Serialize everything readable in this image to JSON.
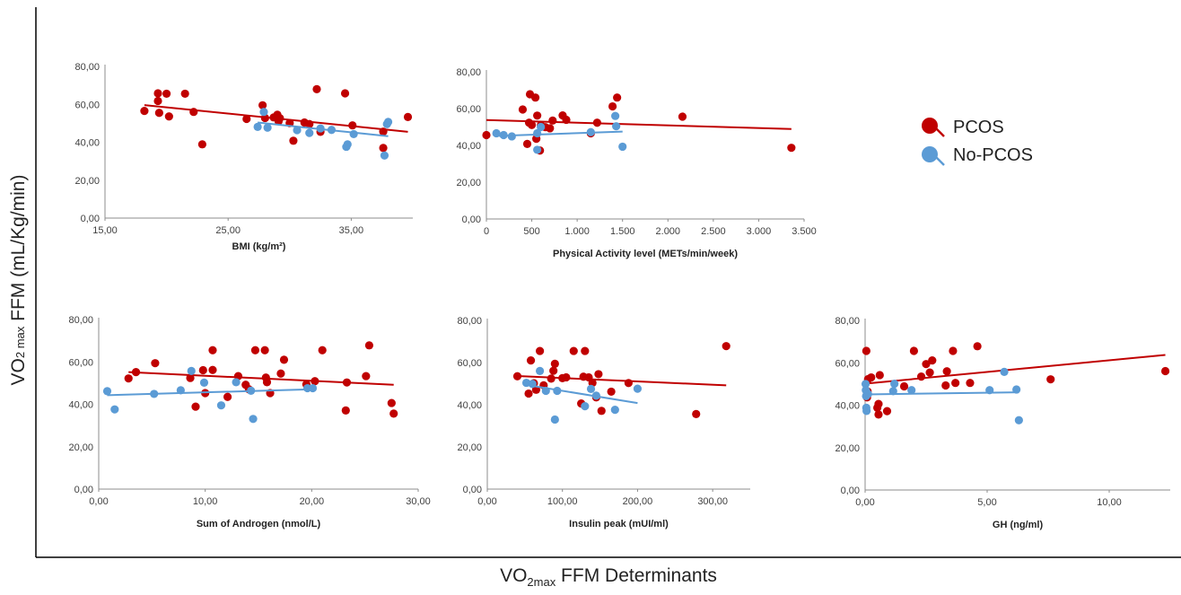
{
  "figure": {
    "y_axis_label": {
      "main": "VO",
      "sub_mid": "2 max",
      "rest": " FFM (mL/Kg/min)"
    },
    "x_axis_label": {
      "main": "VO",
      "sub_mid": "2max",
      "rest": " FFM Determinants"
    }
  },
  "legend": {
    "items": [
      {
        "name": "PCOS",
        "color": "#C00000"
      },
      {
        "name": "No-PCOS",
        "color": "#5B9BD5"
      }
    ]
  },
  "chart_data": [
    {
      "type": "scatter",
      "xlabel": "BMI (kg/m²)",
      "xlim": [
        15,
        40
      ],
      "ylim": [
        0,
        80
      ],
      "xticks": [
        15,
        25,
        35
      ],
      "xtick_labels": [
        "15,00",
        "25,00",
        "35,00"
      ],
      "yticks": [
        0,
        20,
        40,
        60,
        80
      ],
      "ytick_labels": [
        "0,00",
        "20,00",
        "40,00",
        "60,00",
        "80,00"
      ],
      "series": [
        {
          "name": "PCOS",
          "color": "#C00000",
          "points": [
            [
              18.2,
              56.5
            ],
            [
              19.3,
              65.8
            ],
            [
              19.3,
              61.8
            ],
            [
              19.4,
              55.5
            ],
            [
              20,
              65.6
            ],
            [
              20.2,
              53.6
            ],
            [
              21.5,
              65.6
            ],
            [
              22.2,
              56
            ],
            [
              22.9,
              38.9
            ],
            [
              26.5,
              52.3
            ],
            [
              27.8,
              59.5
            ],
            [
              28,
              52.8
            ],
            [
              28.7,
              53.1
            ],
            [
              29,
              54.5
            ],
            [
              29.1,
              51.1
            ],
            [
              29.2,
              52.7
            ],
            [
              30,
              50.1
            ],
            [
              30.3,
              40.8
            ],
            [
              31.2,
              50.4
            ],
            [
              31.6,
              49.6
            ],
            [
              32.2,
              68
            ],
            [
              32.5,
              45.5
            ],
            [
              34.5,
              65.8
            ],
            [
              35.1,
              48.9
            ],
            [
              37.6,
              45.6
            ],
            [
              37.6,
              37
            ],
            [
              39.6,
              53.3
            ]
          ],
          "trend": [
            [
              18.2,
              59.6
            ],
            [
              39.6,
              45.5
            ]
          ]
        },
        {
          "name": "No-PCOS",
          "color": "#5B9BD5",
          "points": [
            [
              27.4,
              48.1
            ],
            [
              27.9,
              56
            ],
            [
              28.2,
              47.7
            ],
            [
              30.6,
              46.4
            ],
            [
              31.6,
              44.9
            ],
            [
              32.5,
              47.3
            ],
            [
              33.4,
              46.5
            ],
            [
              34.6,
              37.6
            ],
            [
              34.7,
              38.9
            ],
            [
              35.2,
              44.3
            ],
            [
              37.7,
              33
            ],
            [
              37.9,
              49.6
            ],
            [
              38,
              50.7
            ]
          ],
          "trend": [
            [
              27.4,
              50.4
            ],
            [
              38,
              43.2
            ]
          ]
        }
      ]
    },
    {
      "type": "scatter",
      "xlabel": "Physical Activity level (METs/min/week)",
      "xlim": [
        0,
        3500
      ],
      "ylim": [
        0,
        80
      ],
      "xticks": [
        0,
        500,
        1000,
        1500,
        2000,
        2500,
        3000,
        3500
      ],
      "xtick_labels": [
        "0",
        "500",
        "1.000",
        "1.500",
        "2.000",
        "2.500",
        "3.000",
        "3.500"
      ],
      "yticks": [
        0,
        20,
        40,
        60,
        80
      ],
      "ytick_labels": [
        "0,00",
        "20,00",
        "40,00",
        "60,00",
        "80,00"
      ],
      "series": [
        {
          "name": "PCOS",
          "color": "#C00000",
          "points": [
            [
              0,
              45.6
            ],
            [
              400,
              59.5
            ],
            [
              450,
              40.8
            ],
            [
              470,
              52.3
            ],
            [
              480,
              67.8
            ],
            [
              500,
              51.1
            ],
            [
              540,
              66
            ],
            [
              550,
              43.6
            ],
            [
              560,
              56.2
            ],
            [
              590,
              37.2
            ],
            [
              600,
              51
            ],
            [
              650,
              49.9
            ],
            [
              700,
              49.3
            ],
            [
              730,
              53.5
            ],
            [
              840,
              56.3
            ],
            [
              880,
              53.9
            ],
            [
              1150,
              46.6
            ],
            [
              1220,
              52.3
            ],
            [
              1390,
              61.2
            ],
            [
              1440,
              66
            ],
            [
              2160,
              55.6
            ],
            [
              3360,
              38.7
            ]
          ],
          "trend": [
            [
              0,
              53.8
            ],
            [
              3360,
              48.9
            ]
          ]
        },
        {
          "name": "No-PCOS",
          "color": "#5B9BD5",
          "points": [
            [
              110,
              46.6
            ],
            [
              190,
              45.6
            ],
            [
              280,
              44.9
            ],
            [
              560,
              46.6
            ],
            [
              560,
              37.6
            ],
            [
              600,
              50
            ],
            [
              1150,
              47.2
            ],
            [
              1420,
              56
            ],
            [
              1430,
              50.4
            ],
            [
              1500,
              39.3
            ]
          ],
          "trend": [
            [
              110,
              45.1
            ],
            [
              1500,
              47.5
            ]
          ]
        }
      ]
    },
    {
      "type": "scatter",
      "xlabel": "Sum of Androgen (nmol/L)",
      "xlim": [
        0,
        30
      ],
      "ylim": [
        0,
        80
      ],
      "xticks": [
        0,
        10,
        20,
        30
      ],
      "xtick_labels": [
        "0,00",
        "10,00",
        "20,00",
        "30,00"
      ],
      "yticks": [
        0,
        20,
        40,
        60,
        80
      ],
      "ytick_labels": [
        "0,00",
        "20,00",
        "40,00",
        "60,00",
        "80,00"
      ],
      "series": [
        {
          "name": "PCOS",
          "color": "#C00000",
          "points": [
            [
              2.8,
              52.2
            ],
            [
              3.5,
              55.2
            ],
            [
              5.3,
              59.4
            ],
            [
              8.6,
              52.4
            ],
            [
              9.1,
              38.9
            ],
            [
              9.8,
              56.1
            ],
            [
              10,
              45.3
            ],
            [
              10.7,
              56.2
            ],
            [
              10.7,
              65.5
            ],
            [
              12.1,
              43.5
            ],
            [
              13.1,
              53.3
            ],
            [
              13.8,
              49.2
            ],
            [
              14.1,
              47.1
            ],
            [
              14.7,
              65.5
            ],
            [
              15.6,
              65.5
            ],
            [
              15.7,
              52.6
            ],
            [
              15.8,
              50.4
            ],
            [
              16.1,
              45.3
            ],
            [
              17.1,
              54.5
            ],
            [
              17.4,
              61
            ],
            [
              19.5,
              49.4
            ],
            [
              20.3,
              50.9
            ],
            [
              21,
              65.5
            ],
            [
              23.2,
              37.1
            ],
            [
              23.3,
              50.3
            ],
            [
              25.1,
              53.3
            ],
            [
              25.4,
              67.8
            ],
            [
              27.5,
              40.6
            ],
            [
              27.7,
              35.6
            ]
          ],
          "trend": [
            [
              2.8,
              55.2
            ],
            [
              27.7,
              49.2
            ]
          ]
        },
        {
          "name": "No-PCOS",
          "color": "#5B9BD5",
          "points": [
            [
              0.8,
              46.2
            ],
            [
              1.5,
              37.6
            ],
            [
              5.2,
              44.9
            ],
            [
              7.7,
              46.6
            ],
            [
              8.7,
              55.7
            ],
            [
              9.9,
              50.2
            ],
            [
              11.5,
              39.5
            ],
            [
              12.9,
              50.4
            ],
            [
              14.3,
              46.4
            ],
            [
              14.5,
              33.1
            ],
            [
              19.6,
              47.6
            ],
            [
              20.1,
              47.6
            ]
          ],
          "trend": [
            [
              0.8,
              44.3
            ],
            [
              20.1,
              47.1
            ]
          ]
        }
      ]
    },
    {
      "type": "scatter",
      "xlabel": "Insulin peak (mUI/ml)",
      "xlim": [
        0,
        350
      ],
      "ylim": [
        0,
        80
      ],
      "xticks": [
        0,
        100,
        200,
        300
      ],
      "xtick_labels": [
        "0,00",
        "100,00",
        "200,00",
        "300,00"
      ],
      "yticks": [
        0,
        20,
        40,
        60,
        80
      ],
      "ytick_labels": [
        "0,00",
        "20,00",
        "40,00",
        "60,00",
        "80,00"
      ],
      "series": [
        {
          "name": "PCOS",
          "color": "#C00000",
          "points": [
            [
              40,
              53.5
            ],
            [
              55,
              45.3
            ],
            [
              58,
              61
            ],
            [
              62,
              50.2
            ],
            [
              65,
              47.1
            ],
            [
              70,
              65.5
            ],
            [
              75,
              49.2
            ],
            [
              85,
              52.4
            ],
            [
              88,
              56.1
            ],
            [
              90,
              59.4
            ],
            [
              100,
              52.6
            ],
            [
              105,
              53
            ],
            [
              115,
              65.5
            ],
            [
              125,
              40.6
            ],
            [
              128,
              53.3
            ],
            [
              130,
              65.5
            ],
            [
              135,
              53
            ],
            [
              140,
              50.4
            ],
            [
              145,
              43.5
            ],
            [
              148,
              54.5
            ],
            [
              152,
              37.1
            ],
            [
              165,
              46.2
            ],
            [
              188,
              50.3
            ],
            [
              278,
              35.6
            ],
            [
              318,
              67.8
            ]
          ],
          "trend": [
            [
              40,
              53.6
            ],
            [
              318,
              49.2
            ]
          ]
        },
        {
          "name": "No-PCOS",
          "color": "#5B9BD5",
          "points": [
            [
              52,
              50.4
            ],
            [
              60,
              49.9
            ],
            [
              70,
              56
            ],
            [
              78,
              46.6
            ],
            [
              90,
              33
            ],
            [
              93,
              46.6
            ],
            [
              130,
              39.3
            ],
            [
              138,
              47.5
            ],
            [
              145,
              44.3
            ],
            [
              170,
              37.6
            ],
            [
              200,
              47.6
            ]
          ],
          "trend": [
            [
              52,
              49.4
            ],
            [
              200,
              40.8
            ]
          ]
        }
      ]
    },
    {
      "type": "scatter",
      "xlabel": "GH (ng/ml)",
      "xlim": [
        0,
        12.5
      ],
      "ylim": [
        0,
        80
      ],
      "xticks": [
        0,
        5,
        10
      ],
      "xtick_labels": [
        "0,00",
        "5,00",
        "10,00"
      ],
      "yticks": [
        0,
        20,
        40,
        60,
        80
      ],
      "ytick_labels": [
        "0,00",
        "20,00",
        "40,00",
        "60,00",
        "80,00"
      ],
      "series": [
        {
          "name": "PCOS",
          "color": "#C00000",
          "points": [
            [
              0.05,
              65.6
            ],
            [
              0.08,
              43.7
            ],
            [
              0.1,
              46.5
            ],
            [
              0.12,
              52.3
            ],
            [
              0.25,
              53.1
            ],
            [
              0.5,
              38.8
            ],
            [
              0.55,
              40.6
            ],
            [
              0.55,
              35.6
            ],
            [
              0.6,
              54.2
            ],
            [
              0.9,
              37.2
            ],
            [
              1.6,
              48.9
            ],
            [
              2,
              65.6
            ],
            [
              2.3,
              53.5
            ],
            [
              2.5,
              59.4
            ],
            [
              2.65,
              55.4
            ],
            [
              2.75,
              61.1
            ],
            [
              3.3,
              49.3
            ],
            [
              3.35,
              56
            ],
            [
              3.6,
              65.6
            ],
            [
              3.7,
              50.5
            ],
            [
              4.3,
              50.5
            ],
            [
              4.6,
              67.8
            ],
            [
              7.6,
              52.2
            ],
            [
              12.3,
              56.1
            ]
          ],
          "trend": [
            [
              0.05,
              50.2
            ],
            [
              12.3,
              63.7
            ]
          ]
        },
        {
          "name": "No-PCOS",
          "color": "#5B9BD5",
          "points": [
            [
              0.02,
              50
            ],
            [
              0.03,
              47.1
            ],
            [
              0.04,
              44.3
            ],
            [
              0.05,
              38.8
            ],
            [
              0.06,
              37.3
            ],
            [
              0.08,
              45.5
            ],
            [
              0.12,
              45.3
            ],
            [
              1.15,
              46.6
            ],
            [
              1.2,
              50.1
            ],
            [
              1.9,
              47.1
            ],
            [
              5.1,
              47.1
            ],
            [
              5.7,
              55.7
            ],
            [
              6.2,
              47.4
            ],
            [
              6.3,
              32.9
            ]
          ],
          "trend": [
            [
              0.02,
              45.1
            ],
            [
              6.3,
              46.1
            ]
          ]
        }
      ]
    }
  ]
}
